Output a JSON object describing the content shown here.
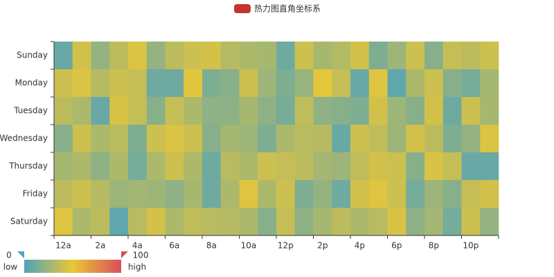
{
  "chart_data": {
    "type": "heatmap",
    "legend": "热力图直角坐标系",
    "legend_color": "#c23531",
    "categories": [
      "12a",
      null,
      "2a",
      null,
      "4a",
      null,
      "6a",
      null,
      "8a",
      null,
      "10a",
      null,
      "12p",
      null,
      "2p",
      null,
      "4p",
      null,
      "6p",
      null,
      "8p",
      null,
      "10p",
      null
    ],
    "days": [
      "Sunday",
      "Monday",
      "Tuesday",
      "Wednesday",
      "Thursday",
      "Friday",
      "Saturday"
    ],
    "values": [
      [
        8,
        42,
        22,
        35,
        45,
        22,
        35,
        40,
        43,
        33,
        30,
        28,
        10,
        40,
        28,
        32,
        42,
        15,
        25,
        40,
        18,
        38,
        35,
        40
      ],
      [
        40,
        45,
        33,
        40,
        38,
        10,
        10,
        47,
        15,
        18,
        40,
        25,
        15,
        23,
        48,
        38,
        8,
        46,
        5,
        30,
        40,
        18,
        12,
        28
      ],
      [
        35,
        30,
        8,
        44,
        38,
        18,
        38,
        30,
        20,
        20,
        28,
        20,
        13,
        36,
        20,
        18,
        15,
        42,
        25,
        18,
        42,
        10,
        40,
        28
      ],
      [
        18,
        40,
        30,
        34,
        15,
        40,
        45,
        40,
        18,
        28,
        25,
        15,
        30,
        34,
        33,
        8,
        40,
        36,
        25,
        42,
        35,
        15,
        22,
        45
      ],
      [
        28,
        30,
        20,
        30,
        12,
        30,
        40,
        30,
        10,
        34,
        30,
        40,
        38,
        35,
        27,
        25,
        36,
        42,
        40,
        18,
        44,
        38,
        8,
        8
      ],
      [
        35,
        40,
        33,
        25,
        27,
        25,
        20,
        28,
        10,
        30,
        46,
        30,
        40,
        15,
        22,
        10,
        42,
        46,
        40,
        12,
        25,
        18,
        38,
        42
      ],
      [
        46,
        30,
        35,
        5,
        34,
        43,
        30,
        36,
        34,
        33,
        30,
        18,
        38,
        20,
        28,
        35,
        30,
        34,
        44,
        20,
        27,
        12,
        40,
        22
      ]
    ],
    "visual_map": {
      "min": 0,
      "max": 100,
      "colors": [
        "#50a3ba",
        "#eac736",
        "#d94e5d"
      ],
      "low": "low",
      "high": "high"
    }
  }
}
